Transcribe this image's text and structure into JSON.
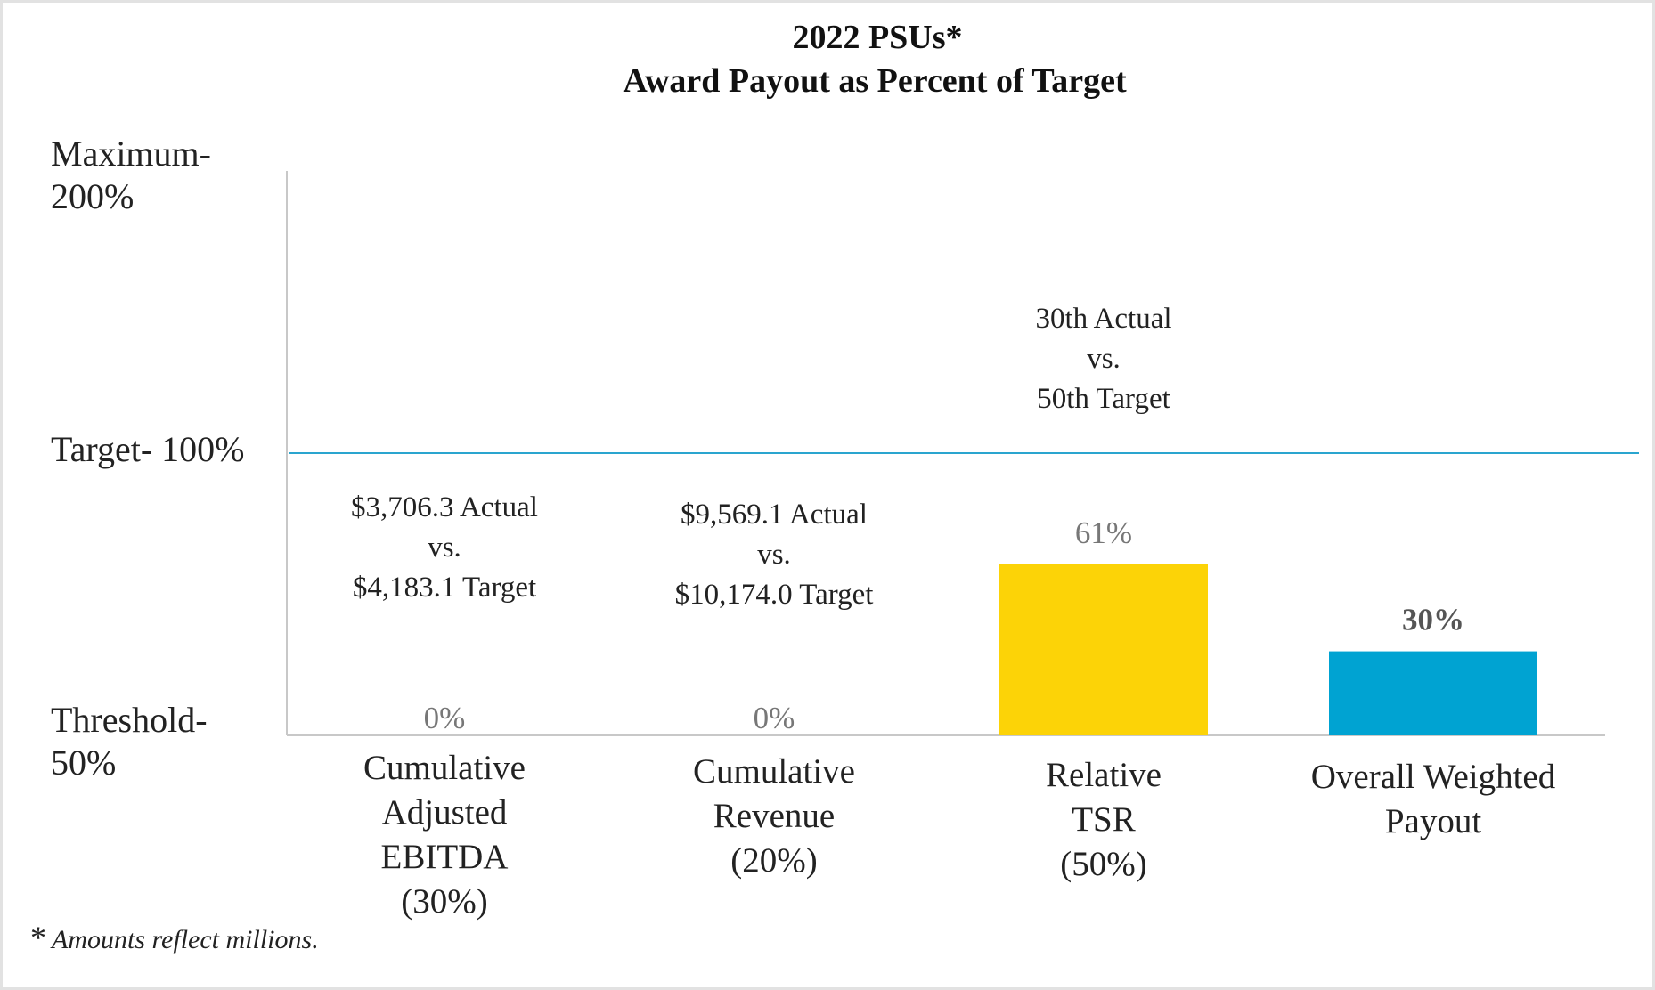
{
  "chart_data": {
    "type": "bar",
    "title": "2022 PSUs*",
    "subtitle": "Award Payout as Percent of Target",
    "y_levels": [
      {
        "name": "maximum",
        "label_lines": [
          "Maximum-",
          "200%"
        ],
        "value": 200
      },
      {
        "name": "target",
        "label_lines": [
          "Target- 100%"
        ],
        "value": 100
      },
      {
        "name": "threshold",
        "label_lines": [
          "Threshold-",
          "50%"
        ],
        "value": 50
      }
    ],
    "ylim": [
      50,
      200
    ],
    "target_line": 100,
    "categories": [
      {
        "label_lines": [
          "Cumulative",
          "Adjusted",
          "EBITDA",
          "(30%)"
        ],
        "value": 0,
        "value_label": "0%",
        "note_lines": [
          "$3,706.3 Actual",
          "vs.",
          "$4,183.1 Target"
        ],
        "color": "#FFD200"
      },
      {
        "label_lines": [
          "Cumulative",
          "Revenue",
          "(20%)"
        ],
        "value": 0,
        "value_label": "0%",
        "note_lines": [
          "$9,569.1 Actual",
          "vs.",
          "$10,174.0 Target"
        ],
        "color": "#FFD200"
      },
      {
        "label_lines": [
          "Relative",
          "TSR",
          "(50%)"
        ],
        "value": 61,
        "value_label": "61%",
        "note_lines": [
          "30th Actual",
          "vs.",
          "50th Target"
        ],
        "color": "#FCD307"
      },
      {
        "label_lines": [
          "Overall Weighted",
          "Payout"
        ],
        "value": 30,
        "value_label": "30%",
        "note_lines": [],
        "color": "#00A3D2",
        "bold_label": true
      }
    ],
    "colors": {
      "target_line": "#2AA5CF",
      "axis": "#c8c8c8"
    }
  },
  "footnote": {
    "symbol": "*",
    "text": "Amounts reflect millions."
  }
}
